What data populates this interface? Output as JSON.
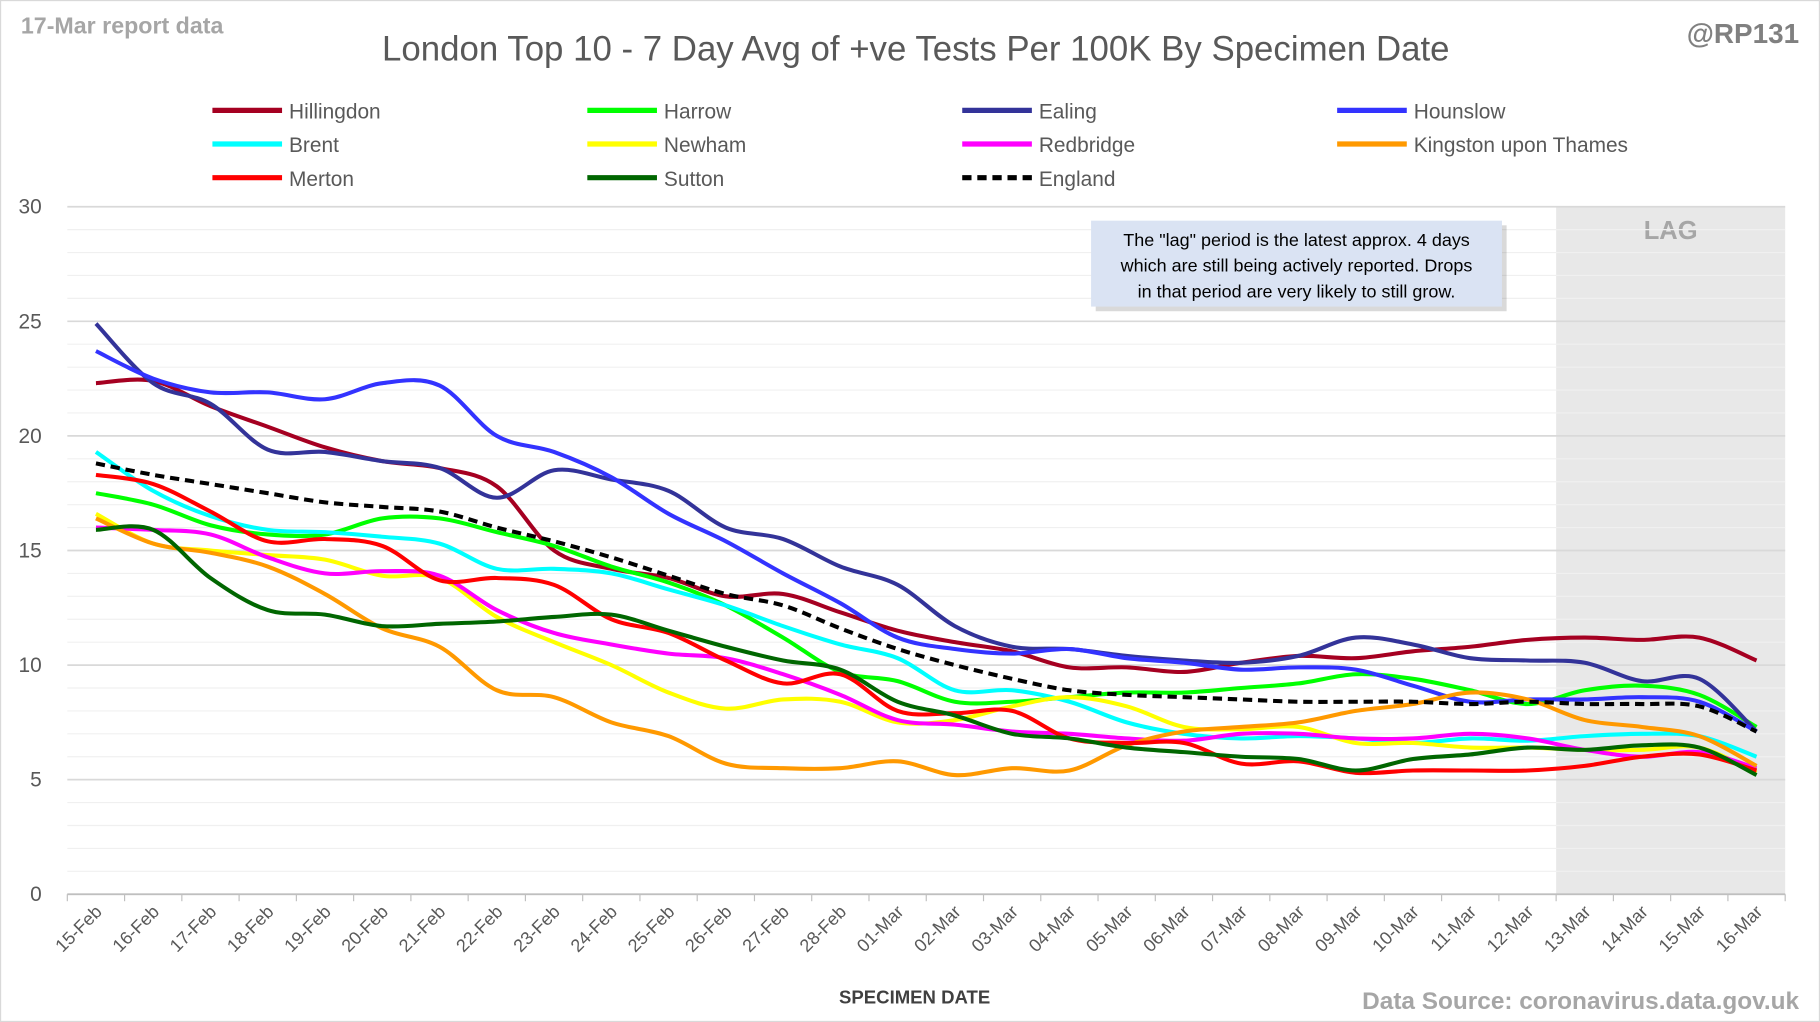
{
  "header": {
    "report_label": "17-Mar report data",
    "handle": "@RP131",
    "source": "Data Source: coronavirus.data.gov.uk"
  },
  "annotation": {
    "lag_label": "LAG",
    "note_lines": [
      "The \"lag\" period is the latest approx. 4 days",
      "which are still being actively reported. Drops",
      "in that period are very likely to still grow."
    ]
  },
  "chart_data": {
    "type": "line",
    "title": "London Top 10 - 7 Day Avg of +ve Tests Per 100K By Specimen Date",
    "xlabel": "SPECIMEN DATE",
    "ylabel": "",
    "ylim": [
      0,
      30
    ],
    "yticks": [
      0,
      5,
      10,
      15,
      20,
      25,
      30
    ],
    "grid": true,
    "legend_position": "top",
    "lag_start_category": "13-Mar",
    "categories": [
      "15-Feb",
      "16-Feb",
      "17-Feb",
      "18-Feb",
      "19-Feb",
      "20-Feb",
      "21-Feb",
      "22-Feb",
      "23-Feb",
      "24-Feb",
      "25-Feb",
      "26-Feb",
      "27-Feb",
      "28-Feb",
      "01-Mar",
      "02-Mar",
      "03-Mar",
      "04-Mar",
      "05-Mar",
      "06-Mar",
      "07-Mar",
      "08-Mar",
      "09-Mar",
      "10-Mar",
      "11-Mar",
      "12-Mar",
      "13-Mar",
      "14-Mar",
      "15-Mar",
      "16-Mar"
    ],
    "series": [
      {
        "name": "Hillingdon",
        "color": "#a50021",
        "dashed": false,
        "values": [
          22.3,
          22.4,
          21.3,
          20.4,
          19.5,
          18.9,
          18.6,
          17.8,
          15.0,
          14.2,
          13.8,
          13.0,
          13.1,
          12.3,
          11.5,
          11.0,
          10.6,
          9.9,
          9.9,
          9.7,
          10.1,
          10.4,
          10.3,
          10.6,
          10.8,
          11.1,
          11.2,
          11.1,
          11.2,
          10.2
        ]
      },
      {
        "name": "Harrow",
        "color": "#00ff00",
        "dashed": false,
        "values": [
          17.5,
          17.0,
          16.1,
          15.7,
          15.7,
          16.4,
          16.4,
          15.8,
          15.2,
          14.3,
          13.6,
          12.6,
          11.2,
          9.7,
          9.3,
          8.4,
          8.4,
          8.6,
          8.8,
          8.8,
          9.0,
          9.2,
          9.6,
          9.4,
          8.9,
          8.3,
          8.9,
          9.1,
          8.7,
          7.3
        ]
      },
      {
        "name": "Ealing",
        "color": "#333399",
        "dashed": false,
        "values": [
          24.9,
          22.3,
          21.4,
          19.4,
          19.3,
          18.9,
          18.6,
          17.3,
          18.5,
          18.1,
          17.6,
          16.0,
          15.5,
          14.3,
          13.5,
          11.7,
          10.8,
          10.7,
          10.4,
          10.2,
          10.1,
          10.4,
          11.2,
          10.9,
          10.3,
          10.2,
          10.1,
          9.3,
          9.4,
          7.1
        ]
      },
      {
        "name": "Hounslow",
        "color": "#3333ff",
        "dashed": false,
        "values": [
          23.7,
          22.5,
          21.9,
          21.9,
          21.6,
          22.3,
          22.2,
          20.0,
          19.3,
          18.2,
          16.6,
          15.4,
          14.0,
          12.7,
          11.2,
          10.7,
          10.5,
          10.7,
          10.3,
          10.1,
          9.8,
          9.9,
          9.8,
          9.1,
          8.4,
          8.5,
          8.5,
          8.6,
          8.4,
          7.1
        ]
      },
      {
        "name": "Brent",
        "color": "#00ffff",
        "dashed": false,
        "values": [
          19.3,
          17.6,
          16.5,
          15.9,
          15.8,
          15.6,
          15.3,
          14.2,
          14.2,
          14.0,
          13.3,
          12.6,
          11.7,
          10.9,
          10.3,
          8.9,
          8.9,
          8.4,
          7.5,
          7.0,
          6.8,
          6.9,
          6.8,
          6.6,
          6.8,
          6.7,
          6.9,
          7.0,
          6.9,
          6.0
        ]
      },
      {
        "name": "Newham",
        "color": "#ffff00",
        "dashed": false,
        "values": [
          16.6,
          15.3,
          15.0,
          14.8,
          14.6,
          13.9,
          13.8,
          12.1,
          11.0,
          10.0,
          8.8,
          8.1,
          8.5,
          8.4,
          7.5,
          7.6,
          8.2,
          8.6,
          8.2,
          7.3,
          7.2,
          7.3,
          6.6,
          6.6,
          6.4,
          6.4,
          6.3,
          6.3,
          6.4,
          5.3
        ]
      },
      {
        "name": "Redbridge",
        "color": "#ff00ff",
        "dashed": false,
        "values": [
          16.0,
          15.9,
          15.7,
          14.7,
          14.0,
          14.1,
          13.9,
          12.4,
          11.4,
          10.9,
          10.5,
          10.3,
          9.6,
          8.7,
          7.6,
          7.4,
          7.1,
          7.0,
          6.8,
          6.7,
          7.0,
          7.0,
          6.8,
          6.8,
          7.0,
          6.8,
          6.3,
          6.0,
          6.2,
          5.5
        ]
      },
      {
        "name": "Kingston upon Thames",
        "color": "#ff9900",
        "dashed": false,
        "values": [
          16.4,
          15.3,
          14.9,
          14.3,
          13.1,
          11.6,
          10.8,
          8.9,
          8.6,
          7.5,
          6.9,
          5.7,
          5.5,
          5.5,
          5.8,
          5.2,
          5.5,
          5.4,
          6.5,
          7.1,
          7.3,
          7.5,
          8.0,
          8.3,
          8.8,
          8.5,
          7.6,
          7.3,
          6.9,
          5.6
        ]
      },
      {
        "name": "Merton",
        "color": "#ff0000",
        "dashed": false,
        "values": [
          18.3,
          17.9,
          16.7,
          15.4,
          15.5,
          15.2,
          13.7,
          13.8,
          13.5,
          12.0,
          11.4,
          10.2,
          9.2,
          9.6,
          8.0,
          7.9,
          8.0,
          6.8,
          6.6,
          6.6,
          5.7,
          5.8,
          5.3,
          5.4,
          5.4,
          5.4,
          5.6,
          6.0,
          6.1,
          5.4
        ]
      },
      {
        "name": "Sutton",
        "color": "#006600",
        "dashed": false,
        "values": [
          15.9,
          15.9,
          13.8,
          12.4,
          12.2,
          11.7,
          11.8,
          11.9,
          12.1,
          12.2,
          11.5,
          10.8,
          10.2,
          9.8,
          8.4,
          7.8,
          7.0,
          6.8,
          6.4,
          6.2,
          6.0,
          5.9,
          5.4,
          5.9,
          6.1,
          6.4,
          6.3,
          6.5,
          6.4,
          5.2
        ]
      },
      {
        "name": "England",
        "color": "#000000",
        "dashed": true,
        "values": [
          18.8,
          18.3,
          17.9,
          17.5,
          17.1,
          16.9,
          16.7,
          16.0,
          15.4,
          14.7,
          13.9,
          13.1,
          12.6,
          11.6,
          10.7,
          10.0,
          9.4,
          8.9,
          8.7,
          8.6,
          8.5,
          8.4,
          8.4,
          8.4,
          8.3,
          8.4,
          8.3,
          8.3,
          8.2,
          7.1
        ]
      }
    ]
  }
}
